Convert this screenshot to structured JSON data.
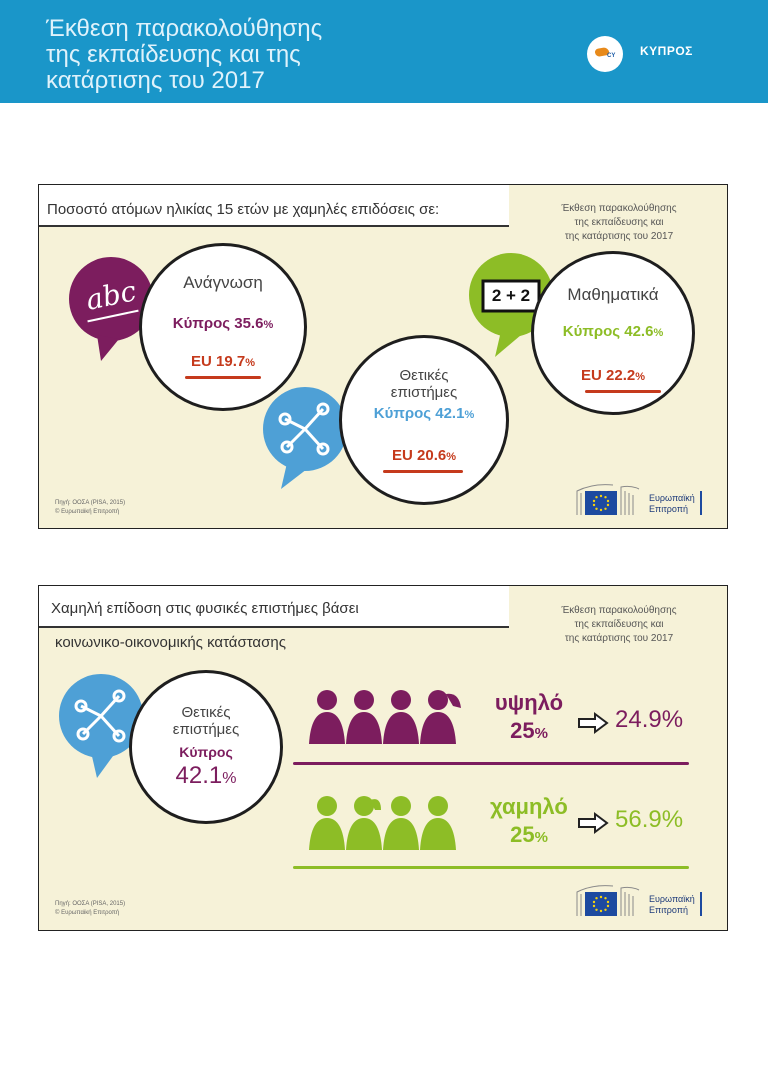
{
  "header": {
    "title": "Έκθεση παρακολούθησης\nτης εκπαίδευσης και της\nκατάρτισης του 2017",
    "country_code": "CY",
    "country": "ΚΥΠΡΟΣ"
  },
  "panel1": {
    "title": "Ποσοστό ατόμων ηλικίας 15 ετών με χαμηλές επιδόσεις σε:",
    "report_label": "Έκθεση παρακολούθησης\nτης εκπαίδευσης και\nτης κατάρτισης του 2017",
    "reading": {
      "icon_text": "abc",
      "subject": "Ανάγνωση",
      "cy_label": "Κύπρος 35.6",
      "eu_label": "EU 19.7",
      "pct": "%",
      "cy_value": 35.6,
      "eu_value": 19.7
    },
    "science": {
      "subject": "Θετικές\nεπιστήμες",
      "cy_label": "Κύπρος 42.1",
      "eu_label": "EU 20.6",
      "pct": "%",
      "cy_value": 42.1,
      "eu_value": 20.6
    },
    "math": {
      "icon_text": "2 + 2",
      "subject": "Μαθηματικά",
      "cy_label": "Κύπρος 42.6",
      "eu_label": "EU 22.2",
      "pct": "%",
      "cy_value": 42.6,
      "eu_value": 22.2
    },
    "source": "Πηγή: ΟΟΣΑ (PISA, 2015)\n© Ευρωπαϊκή Επιτροπή",
    "eu_logo_text": "Ευρωπαϊκή\nΕπιτροπή"
  },
  "panel2": {
    "title_line1": "Χαμηλή επίδοση στις φυσικές επιστήμες βάσει",
    "title_line2": "κοινωνικο-οικονομικής κατάστασης",
    "report_label": "Έκθεση παρακολούθησης\nτης εκπαίδευσης και\nτης κατάρτισης του 2017",
    "subject": "Θετικές\nεπιστήμες",
    "country": "Κύπρος",
    "value_label": "42.1",
    "pct": "%",
    "high": {
      "label": "υψηλό",
      "share": "25",
      "pct": "%",
      "result": "24.9%"
    },
    "low": {
      "label": "χαμηλό",
      "share": "25",
      "pct": "%",
      "result": "56.9%"
    },
    "source": "Πηγή: ΟΟΣΑ (PISA, 2015)\n© Ευρωπαϊκή Επιτροπή",
    "eu_logo_text": "Ευρωπαϊκή\nΕπιτροπή"
  },
  "colors": {
    "header": "#1a96c9",
    "purple": "#7c1d5e",
    "green": "#8dbd26",
    "blue": "#4ea0d6",
    "eu_red": "#c53a1c",
    "panel_bg": "#f6f2d8"
  },
  "icons": [
    "abc-bubble-icon",
    "two-plus-two-icon",
    "molecule-icon",
    "person-icon",
    "arrow-right-icon",
    "eu-flag-icon"
  ]
}
